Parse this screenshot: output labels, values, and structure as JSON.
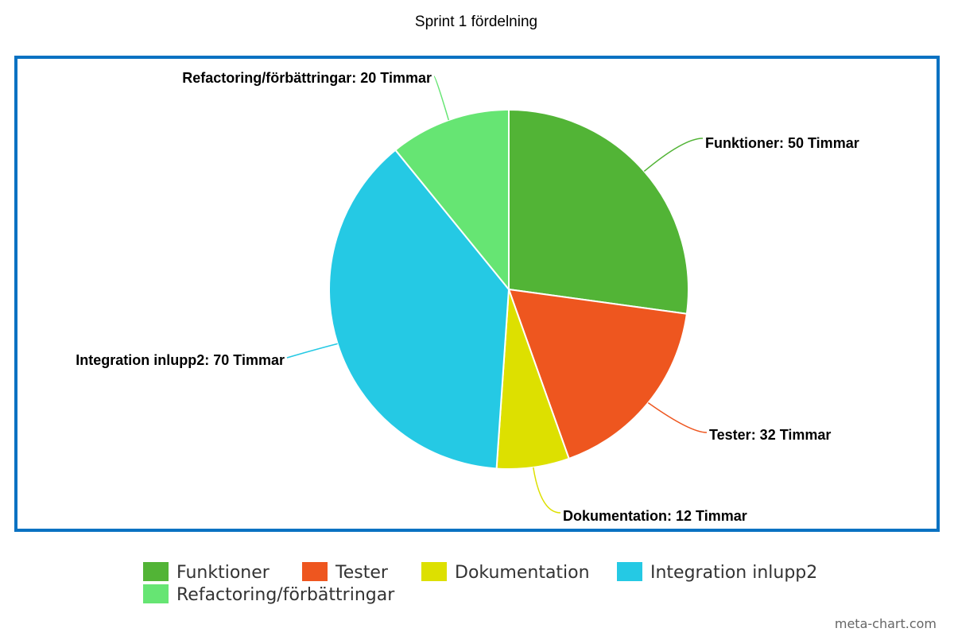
{
  "chart_data": {
    "type": "pie",
    "title": "Sprint 1 fördelning",
    "unit": "Timmar",
    "slices": [
      {
        "name": "Funktioner",
        "value": 50,
        "label": "Funktioner: 50 Timmar",
        "color": "#52b436"
      },
      {
        "name": "Tester",
        "value": 32,
        "label": "Tester: 32 Timmar",
        "color": "#ee561f"
      },
      {
        "name": "Dokumentation",
        "value": 12,
        "label": "Dokumentation: 12 Timmar",
        "color": "#dde000"
      },
      {
        "name": "Integration inlupp2",
        "value": 70,
        "label": "Integration inlupp2: 70 Timmar",
        "color": "#25c9e4"
      },
      {
        "name": "Refactoring/förbättringar",
        "value": 20,
        "label": "Refactoring/förbättringar: 20 Timmar",
        "color": "#66e573"
      }
    ],
    "legend": {
      "placement": "bottom",
      "items": [
        "Funktioner",
        "Tester",
        "Dokumentation",
        "Integration inlupp2",
        "Refactoring/förbättringar"
      ]
    }
  },
  "frame_color": "#0a72c2",
  "credit": "meta-chart.com"
}
